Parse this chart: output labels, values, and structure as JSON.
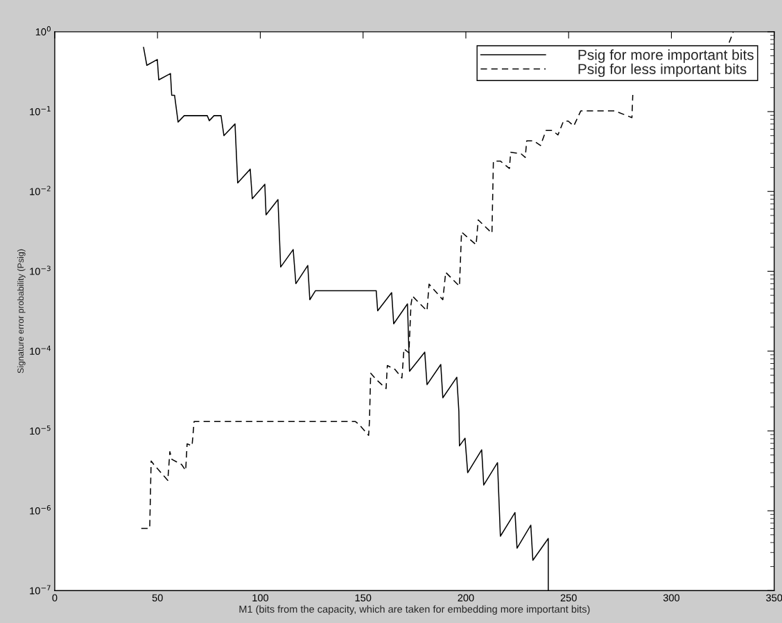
{
  "chart_data": {
    "type": "line",
    "xlabel": "M1 (bits from the capacity, which are taken for embedding more important bits)",
    "ylabel": "Signature error probability (Psig)",
    "log": "y",
    "legend": "top right",
    "xlim": [
      0,
      350
    ],
    "xticks": [
      0,
      50,
      100,
      150,
      200,
      250,
      300,
      350
    ],
    "ylim": [
      1e-07,
      1
    ],
    "yticks": [
      {
        "value": 1e-07,
        "label": "10$^{−7}$"
      },
      {
        "value": 1e-06,
        "label": "10$^{−6}$"
      },
      {
        "value": 1e-05,
        "label": "10$^{−5}$"
      },
      {
        "value": 0.0001,
        "label": "10$^{−4}$"
      },
      {
        "value": 0.001,
        "label": "10$^{−3}$"
      },
      {
        "value": 0.01,
        "label": "10$^{−2}$"
      },
      {
        "value": 0.1,
        "label": "10$^{−1}$"
      },
      {
        "value": 1,
        "label": "10$^{0}$"
      }
    ],
    "series": [
      {
        "name": "Psig for more important bits",
        "color": "#000000",
        "line_style": "solid",
        "x": [
          43.2,
          44.8,
          49.9,
          50.6,
          56.3,
          56.9,
          58.3,
          60.0,
          63.0,
          74.2,
          75.2,
          77.5,
          80.9,
          82.3,
          87.7,
          89.0,
          95.1,
          96.1,
          102.2,
          102.8,
          108.6,
          109.9,
          116.0,
          117.3,
          123.1,
          124.1,
          126.8,
          156.4,
          157.1,
          163.9,
          164.9,
          171.6,
          172.6,
          180.0,
          181.1,
          187.8,
          188.8,
          195.6,
          196.6,
          196.9,
          199.6,
          200.9,
          207.7,
          208.7,
          215.4,
          216.8,
          223.9,
          224.9,
          231.6,
          232.6,
          240.1,
          240.1
        ],
        "values": [
          0.64,
          0.38,
          0.45,
          0.25,
          0.3,
          0.16,
          0.16,
          0.074,
          0.089,
          0.089,
          0.077,
          0.089,
          0.089,
          0.05,
          0.07,
          0.0128,
          0.019,
          0.0081,
          0.0123,
          0.0051,
          0.0079,
          0.00113,
          0.00187,
          0.0007,
          0.00118,
          0.00044,
          0.00057,
          0.00057,
          0.00032,
          0.00054,
          0.00022,
          0.00039,
          5.6e-05,
          9.7e-05,
          3.8e-05,
          6.8e-05,
          2.6e-05,
          4.7e-05,
          1.77e-05,
          6.5e-06,
          8.1e-06,
          3e-06,
          5.8e-06,
          2.1e-06,
          4e-06,
          4.8e-07,
          9.5e-07,
          3.4e-07,
          6.6e-07,
          2.4e-07,
          4.5e-07,
          1e-07
        ]
      },
      {
        "name": "Psig for less important bits",
        "color": "#000000",
        "line_style": "dashed",
        "x": [
          42.1,
          46.2,
          46.9,
          48.2,
          55.0,
          56.0,
          57.0,
          61.7,
          63.7,
          64.4,
          66.8,
          67.8,
          146.3,
          148.0,
          152.7,
          153.1,
          153.7,
          156.4,
          161.2,
          161.8,
          165.5,
          168.9,
          169.9,
          172.3,
          173.3,
          174.0,
          177.3,
          181.1,
          182.1,
          188.8,
          190.2,
          196.9,
          197.9,
          205.0,
          206.0,
          212.7,
          213.4,
          216.8,
          221.2,
          221.8,
          226.9,
          228.9,
          229.6,
          233.0,
          236.3,
          239.0,
          242.1,
          244.8,
          247.5,
          249.8,
          252.5,
          255.9,
          272.4,
          280.8,
          281.2,
          300.0,
          328.1,
          330.1
        ],
        "values": [
          6e-07,
          6e-07,
          4.2e-06,
          3.8e-06,
          2.4e-06,
          5.5e-06,
          4.4e-06,
          3.8e-06,
          3.2e-06,
          6.9e-06,
          6.5e-06,
          1.31e-05,
          1.31e-05,
          1.21e-05,
          8.8e-06,
          1.31e-05,
          5.3e-05,
          4.4e-05,
          3.4e-05,
          6.6e-05,
          5.9e-05,
          4.6e-05,
          0.000107,
          9.5e-05,
          0.00038,
          0.00049,
          0.0004,
          0.00032,
          0.00069,
          0.00044,
          0.00097,
          0.00065,
          0.0031,
          0.00215,
          0.0044,
          0.003,
          0.024,
          0.024,
          0.0194,
          0.031,
          0.0296,
          0.0267,
          0.043,
          0.043,
          0.0376,
          0.058,
          0.058,
          0.051,
          0.076,
          0.076,
          0.066,
          0.102,
          0.102,
          0.084,
          0.162,
          null,
          0.73,
          1.0
        ]
      }
    ]
  }
}
